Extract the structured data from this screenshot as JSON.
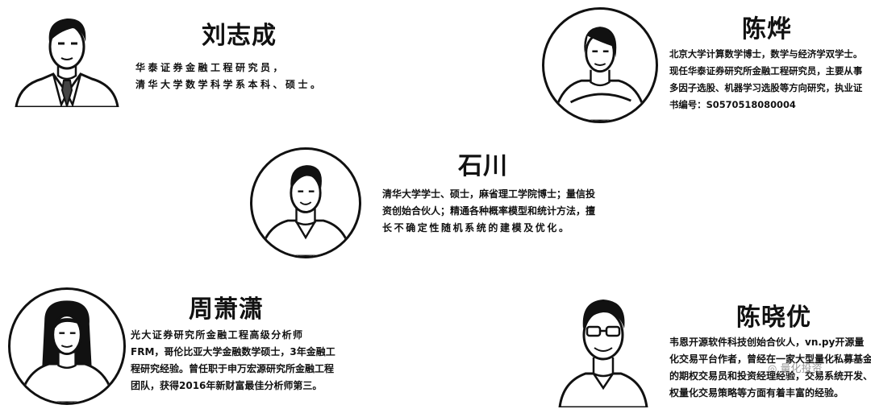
{
  "people": [
    {
      "name": "刘志成",
      "bio": [
        "华泰证券金融工程研究员，",
        "清华大学数学科学系本科、硕士。"
      ],
      "portrait_icon": "man-suit-tie-portrait"
    },
    {
      "name": "陈烨",
      "bio": [
        "北京大学计算数学博士，数学与经济学双学士。",
        "现任华泰证券研究所金融工程研究员，主要从事",
        "多因子选股、机器学习选股等方向研究，执业证",
        "书编号：S0570518080004"
      ],
      "portrait_icon": "woman-crossed-arms-portrait"
    },
    {
      "name": "石川",
      "bio": [
        "清华大学学士、硕士，麻省理工学院博士；量信投",
        "资创始合伙人；精通各种概率模型和统计方法，擅",
        "长不确定性随机系统的建模及优化。"
      ],
      "portrait_icon": "man-open-collar-portrait"
    },
    {
      "name": "周萧潇",
      "bio": [
        "光大证券研究所金融工程高级分析师",
        "FRM，哥伦比亚大学金融数学硕士，3年金融工",
        "程研究经验。曾任职于申万宏源研究所金融工程",
        "团队，获得2016年新财富最佳分析师第三。"
      ],
      "portrait_icon": "woman-long-hair-portrait"
    },
    {
      "name": "陈晓优",
      "bio": [
        "韦恩开源软件科技创始合伙人，vn.py开源量",
        "化交易平台作者，曾经在一家大型量化私募基金",
        "的期权交易员和投资经理经验，交易系统开发、期",
        "权量化交易策略等方面有着丰富的经验。"
      ],
      "portrait_icon": "man-glasses-portrait"
    }
  ],
  "watermark": "◎ 量化投资"
}
